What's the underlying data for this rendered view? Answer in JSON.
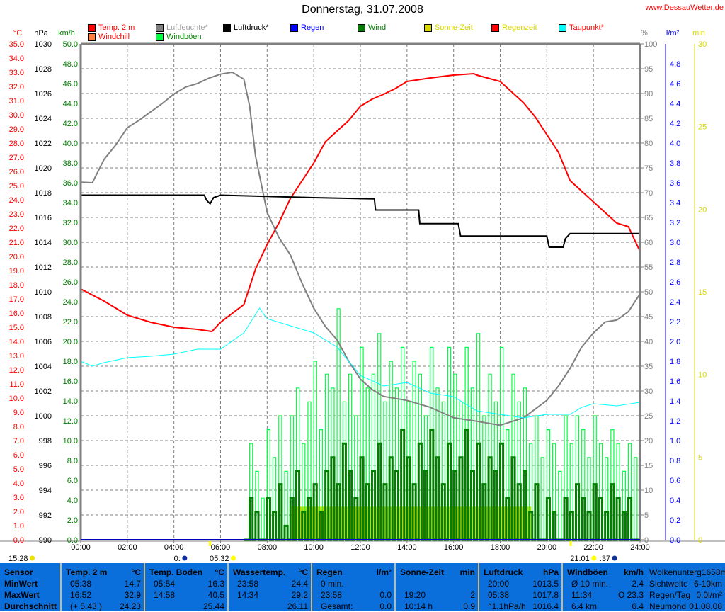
{
  "header": {
    "title": "Donnerstag, 31.07.2008",
    "site": "www.DessauWetter.de"
  },
  "legend": [
    {
      "label": "Temp. 2 m",
      "swatch": "#ff0000",
      "text_color": "#ff0000"
    },
    {
      "label": "Windchill",
      "swatch": "#ff8040",
      "text_color": "#ff0000"
    },
    {
      "label": "Luftfeuchte*",
      "swatch": "#808080",
      "text_color": "#a0a0a0"
    },
    {
      "label": "Windböen",
      "swatch": "#00ff40",
      "text_color": "#008000"
    },
    {
      "label": "Luftdruck*",
      "swatch": "#000000",
      "text_color": "#000000"
    },
    {
      "label": "Regen",
      "swatch": "#0000ff",
      "text_color": "#0000ff"
    },
    {
      "label": "Wind",
      "swatch": "#008000",
      "text_color": "#008000"
    },
    {
      "label": "Sonne-Zeit",
      "swatch": "#d8d800",
      "text_color": "#d8d800"
    },
    {
      "label": "Regenzeit",
      "swatch": "#ff0000",
      "text_color": "#d8d800"
    },
    {
      "label": "Taupunkt*",
      "swatch": "#00ffff",
      "text_color": "#ff0000"
    }
  ],
  "chart_data": {
    "type": "line",
    "title": "Donnerstag, 31.07.2008",
    "grid": true,
    "xlabel": "",
    "x_range_hours": [
      0,
      24
    ],
    "x_ticks": [
      "00:00",
      "02:00",
      "04:00",
      "06:00",
      "08:00",
      "10:00",
      "12:00",
      "14:00",
      "16:00",
      "18:00",
      "20:00",
      "22:00",
      "24:00"
    ],
    "axes": {
      "temp": {
        "unit": "°C",
        "range": [
          0,
          35
        ],
        "color": "#ff0000",
        "ticks": [
          "35.0",
          "34.0",
          "33.0",
          "32.0",
          "31.0",
          "30.0",
          "29.0",
          "28.0",
          "27.0",
          "26.0",
          "25.0",
          "24.0",
          "23.0",
          "22.0",
          "21.0",
          "20.0",
          "19.0",
          "18.0",
          "17.0",
          "16.0",
          "15.0",
          "14.0",
          "13.0",
          "12.0",
          "11.0",
          "10.0",
          "9.0",
          "8.0",
          "7.0",
          "6.0",
          "5.0",
          "4.0",
          "3.0",
          "2.0",
          "1.0",
          "0.0"
        ]
      },
      "pressure": {
        "unit": "hPa",
        "range": [
          990,
          1030
        ],
        "color": "#000000",
        "ticks": [
          "1030",
          "1028",
          "1026",
          "1024",
          "1022",
          "1020",
          "1018",
          "1016",
          "1014",
          "1012",
          "1010",
          "1008",
          "1006",
          "1004",
          "1002",
          "1000",
          "998",
          "996",
          "994",
          "992",
          "990"
        ]
      },
      "wind": {
        "unit": "km/h",
        "range": [
          0,
          50
        ],
        "color": "#008000",
        "ticks": [
          "50.0",
          "48.0",
          "46.0",
          "44.0",
          "42.0",
          "40.0",
          "38.0",
          "36.0",
          "34.0",
          "32.0",
          "30.0",
          "28.0",
          "26.0",
          "24.0",
          "22.0",
          "20.0",
          "18.0",
          "16.0",
          "14.0",
          "12.0",
          "10.0",
          "8.0",
          "6.0",
          "4.0",
          "2.0",
          "0.0"
        ]
      },
      "humidity": {
        "unit": "%",
        "range": [
          0,
          100
        ],
        "color": "#808080",
        "ticks": [
          "100",
          "95",
          "90",
          "85",
          "80",
          "75",
          "70",
          "65",
          "60",
          "55",
          "50",
          "45",
          "40",
          "35",
          "30",
          "25",
          "20",
          "15",
          "10",
          "5",
          "0"
        ]
      },
      "rain": {
        "unit": "l/m²",
        "range": [
          0,
          5
        ],
        "color": "#0000ff",
        "ticks": [
          "4.8",
          "4.6",
          "4.4",
          "4.2",
          "4.0",
          "3.8",
          "3.6",
          "3.4",
          "3.2",
          "3.0",
          "2.8",
          "2.6",
          "2.4",
          "2.2",
          "2.0",
          "1.8",
          "1.6",
          "1.4",
          "1.2",
          "1.0",
          "0.8",
          "0.6",
          "0.4",
          "0.2",
          "0.0"
        ]
      },
      "sun": {
        "unit": "min",
        "range": [
          0,
          30
        ],
        "color": "#d8d800",
        "ticks": [
          "30",
          "25",
          "20",
          "15",
          "10",
          "5",
          "0"
        ]
      }
    },
    "series": [
      {
        "name": "Temp. 2 m",
        "axis": "temp",
        "color": "#ff0000",
        "x": [
          0,
          1,
          2,
          3,
          4,
          5,
          5.63,
          6,
          7,
          7.5,
          8,
          8.5,
          9,
          9.5,
          10,
          10.5,
          11,
          11.5,
          12,
          12.5,
          13,
          13.5,
          14,
          15,
          16,
          16.87,
          17,
          18,
          19,
          19.5,
          20,
          20.5,
          21,
          21.5,
          22,
          22.5,
          23,
          23.5,
          24
        ],
        "y": [
          17.7,
          16.85,
          15.85,
          15.35,
          15.0,
          14.85,
          14.7,
          15.35,
          16.6,
          19.1,
          20.85,
          22.35,
          24.1,
          25.35,
          26.6,
          28.1,
          28.85,
          29.6,
          30.6,
          31.1,
          31.45,
          31.85,
          32.35,
          32.6,
          32.8,
          32.9,
          32.8,
          32.35,
          30.85,
          29.85,
          28.6,
          27.35,
          25.35,
          24.6,
          23.85,
          23.1,
          22.35,
          22.1,
          20.35
        ]
      },
      {
        "name": "Luftfeuchte*",
        "axis": "humidity",
        "color": "#808080",
        "x": [
          0,
          0.5,
          1,
          1.5,
          2,
          2.5,
          3,
          3.5,
          4,
          4.5,
          5,
          5.5,
          6,
          6.5,
          7,
          7.25,
          7.5,
          8,
          8.5,
          9,
          9.5,
          10,
          10.5,
          11,
          11.5,
          12,
          12.5,
          13,
          14,
          15,
          16,
          17,
          18,
          19,
          20,
          20.5,
          21,
          21.5,
          22,
          22.5,
          23,
          23.5,
          24
        ],
        "y": [
          72.1,
          72,
          76.7,
          79.6,
          83.1,
          84.6,
          86.3,
          88,
          89.9,
          91.3,
          92,
          93.1,
          93.9,
          94.3,
          92.9,
          87.4,
          77.4,
          66,
          61,
          57.4,
          51.7,
          46.7,
          43,
          40.3,
          36,
          32.4,
          30.3,
          28.9,
          28.1,
          26.7,
          24.6,
          23.9,
          23.1,
          24.6,
          28.1,
          31,
          34.6,
          38.9,
          41.7,
          43.9,
          44.3,
          46,
          49.6
        ]
      },
      {
        "name": "Luftdruck*",
        "axis": "pressure",
        "color": "#000000",
        "x": [
          0,
          5.3,
          5.4,
          5.55,
          5.7,
          6,
          8,
          10,
          12.6,
          12.65,
          14.5,
          14.55,
          16.2,
          16.3,
          20.0,
          20.1,
          20.7,
          20.8,
          21,
          24
        ],
        "y": [
          1017.8,
          1017.8,
          1017.4,
          1017.1,
          1017.6,
          1017.8,
          1017.7,
          1017.6,
          1017.5,
          1016.6,
          1016.6,
          1015.5,
          1015.5,
          1014.5,
          1014.5,
          1013.6,
          1013.6,
          1014.3,
          1014.7,
          1014.7
        ]
      },
      {
        "name": "Taupunkt*",
        "axis": "temp",
        "color": "#00ffff",
        "x": [
          0,
          0.5,
          1,
          2,
          3,
          4,
          5,
          6,
          7,
          7.67,
          8,
          9,
          10,
          11,
          12,
          13,
          14,
          15,
          16,
          17,
          18,
          19,
          20,
          21,
          21.5,
          22,
          23,
          24
        ],
        "y": [
          12.6,
          12.25,
          12.5,
          12.85,
          12.95,
          13.1,
          13.45,
          13.45,
          14.6,
          16.35,
          15.6,
          15.1,
          14.6,
          13.6,
          11.6,
          10.85,
          11.1,
          10.35,
          10.1,
          9.1,
          8.85,
          8.6,
          8.85,
          8.85,
          9.35,
          9.6,
          9.45,
          9.7
        ]
      },
      {
        "name": "Wind",
        "axis": "wind",
        "color": "#008000",
        "step_minutes": 15,
        "start_hour": 7,
        "y": [
          0,
          4.2,
          2.8,
          0,
          4.2,
          2.8,
          5.6,
          1.4,
          4.2,
          6.9,
          2.8,
          4.2,
          5.6,
          2.8,
          6.9,
          8.3,
          5.6,
          9.7,
          6.9,
          4.2,
          8.3,
          5.6,
          6.9,
          9.7,
          5.6,
          8.3,
          6.9,
          11.1,
          8.3,
          5.6,
          9.7,
          6.9,
          11.1,
          8.3,
          5.6,
          9.7,
          6.9,
          8.3,
          11.1,
          6.9,
          9.7,
          5.6,
          8.3,
          6.9,
          9.7,
          4.2,
          8.3,
          5.6,
          6.9,
          2.8,
          5.6,
          0,
          4.2,
          2.8,
          0,
          4.2,
          2.8,
          5.6,
          4.2,
          2.8,
          5.6,
          4.2,
          2.8,
          5.6,
          4.2,
          2.8,
          4.2,
          0,
          5.6
        ]
      },
      {
        "name": "Windböen",
        "axis": "wind",
        "color": "#00ff40",
        "step_minutes": 15,
        "start_hour": 7,
        "y": [
          0,
          9.7,
          6.9,
          4.2,
          11.1,
          8.3,
          12.5,
          6.9,
          12.5,
          15.3,
          9.7,
          13.9,
          18.0,
          11.1,
          16.7,
          15.3,
          23.3,
          13.9,
          16.7,
          12.5,
          19.4,
          15.3,
          16.7,
          20.8,
          13.9,
          18.0,
          15.3,
          19.4,
          13.9,
          18.0,
          16.7,
          12.5,
          19.4,
          15.3,
          13.9,
          19.4,
          16.7,
          13.9,
          19.4,
          15.3,
          20.8,
          12.5,
          16.7,
          13.9,
          19.4,
          11.1,
          16.7,
          13.9,
          15.3,
          9.7,
          12.5,
          8.3,
          11.1,
          9.7,
          6.9,
          12.5,
          9.7,
          12.5,
          11.1,
          8.3,
          12.5,
          9.7,
          8.3,
          11.1,
          9.7,
          6.9,
          9.7,
          8.3,
          12.5
        ]
      },
      {
        "name": "Sonne-Zeit",
        "axis": "sun",
        "color": "#d8d800",
        "type": "area",
        "x": [
          9.05,
          19.33
        ],
        "y": [
          2,
          2
        ]
      }
    ],
    "astro": [
      {
        "label": "15:28",
        "icon": "cloud-sun-icon",
        "hour": -3.5
      },
      {
        "label": "0:",
        "icon": "moon-icon",
        "hour": 4.0
      },
      {
        "label": "05:32",
        "icon": "sunrise-icon",
        "hour": 5.53
      },
      {
        "label": "21:01",
        "icon": "sunset-icon",
        "hour": 21.0
      },
      {
        "label": ":37",
        "icon": "moon-icon",
        "hour": 21.1
      }
    ]
  },
  "table": {
    "sensor": {
      "header": "Sensor",
      "rows": [
        "MinWert",
        "MaxWert",
        "Durchschnitt"
      ]
    },
    "columns": [
      {
        "header": "Temp. 2 m",
        "unit": "°C",
        "rows": [
          [
            "05:38",
            "14.7"
          ],
          [
            "16:52",
            "32.9"
          ],
          [
            "(+ 5.43 )",
            "24.23"
          ]
        ]
      },
      {
        "header": "Temp. Boden",
        "unit": "°C",
        "rows": [
          [
            "05:54",
            "16.3"
          ],
          [
            "14:58",
            "40.5"
          ],
          [
            "",
            "25.44"
          ]
        ]
      },
      {
        "header": "Wassertemp.",
        "unit": "°C",
        "rows": [
          [
            "23:58",
            "24.4"
          ],
          [
            "14:34",
            "29.2"
          ],
          [
            "",
            "26.11"
          ]
        ]
      },
      {
        "header": "Regen",
        "unit": "l/m²",
        "rows": [
          [
            "0 min.",
            ""
          ],
          [
            "23:58",
            "0.0"
          ],
          [
            "Gesamt:",
            "0.0"
          ]
        ]
      },
      {
        "header": "Sonne-Zeit",
        "unit": "min",
        "rows": [
          [
            "",
            ""
          ],
          [
            "19:20",
            "2"
          ],
          [
            "10:14 h",
            "0.9"
          ]
        ]
      },
      {
        "header": "Luftdruck",
        "unit": "hPa",
        "rows": [
          [
            "20:00",
            "1013.5"
          ],
          [
            "05:38",
            "1017.8"
          ],
          [
            "^1.1hPa/h",
            "1016.4"
          ]
        ]
      },
      {
        "header": "Windböen",
        "unit": "km/h",
        "rows": [
          [
            "Ø 10 min.",
            "2.4"
          ],
          [
            "11:34",
            "O 23.3"
          ],
          [
            "6.4 km",
            "6.4"
          ]
        ]
      }
    ],
    "info": [
      [
        "Wolkenunterg",
        "1658m"
      ],
      [
        "Sichtweite",
        "6-10km"
      ],
      [
        "Regen/Tag",
        "0.0l/m²"
      ],
      [
        "Neumond",
        "01.08.08"
      ]
    ]
  }
}
